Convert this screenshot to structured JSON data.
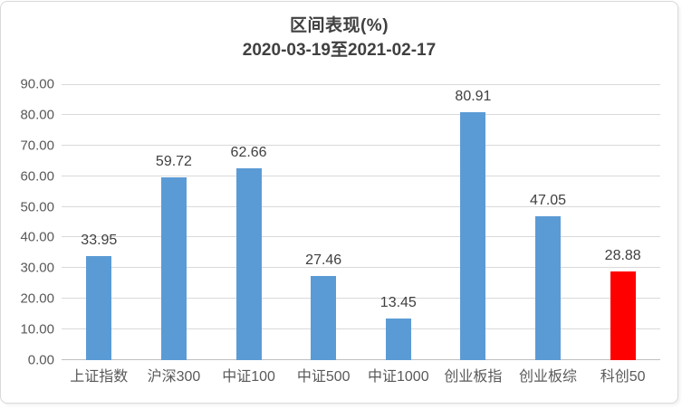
{
  "chart_data": {
    "type": "bar",
    "title": "区间表现(%)",
    "subtitle": "2020-03-19至2021-02-17",
    "categories": [
      "上证指数",
      "沪深300",
      "中证100",
      "中证500",
      "中证1000",
      "创业板指",
      "创业板综",
      "科创50"
    ],
    "values": [
      33.95,
      59.72,
      62.66,
      27.46,
      13.45,
      80.91,
      47.05,
      28.88
    ],
    "data_labels": [
      "33.95",
      "59.72",
      "62.66",
      "27.46",
      "13.45",
      "80.91",
      "47.05",
      "28.88"
    ],
    "bar_colors": [
      "#5b9bd5",
      "#5b9bd5",
      "#5b9bd5",
      "#5b9bd5",
      "#5b9bd5",
      "#5b9bd5",
      "#5b9bd5",
      "#ff0000"
    ],
    "ylim": [
      0,
      90
    ],
    "ytick_step": 10,
    "ytick_labels": [
      "0.00",
      "10.00",
      "20.00",
      "30.00",
      "40.00",
      "50.00",
      "60.00",
      "70.00",
      "80.00",
      "90.00"
    ],
    "grid": true,
    "legend_position": "none",
    "colors": {
      "bar_default": "#5b9bd5",
      "bar_highlight": "#ff0000",
      "gridline": "#d9d9d9",
      "axis_line": "#bfbfbf",
      "tick_text": "#595959",
      "label_text": "#404040",
      "title_text": "#404040",
      "frame_border": "#d9d9d9"
    }
  }
}
